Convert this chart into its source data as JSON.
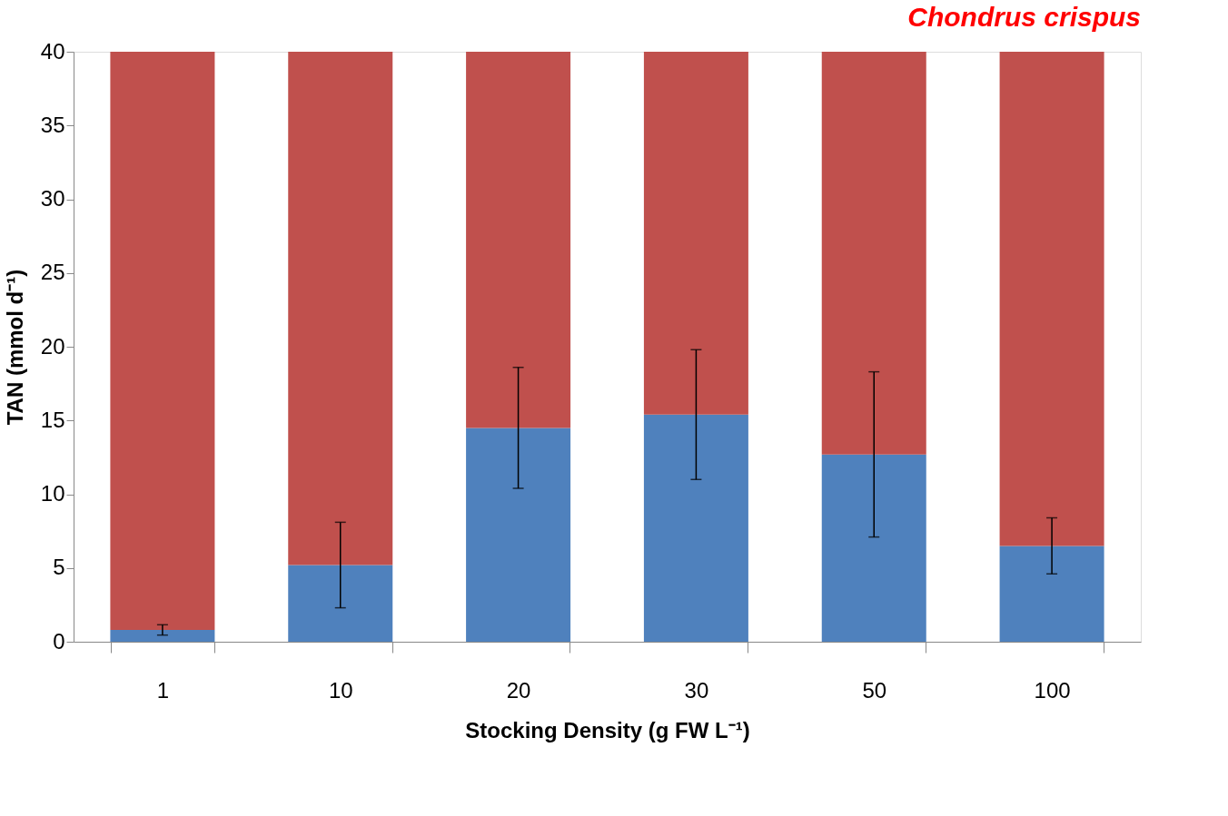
{
  "chart_data": {
    "type": "bar",
    "title": "Chondrus crispus",
    "xlabel": "Stocking Density (g FW L⁻¹)",
    "ylabel": "TAN (mmol d⁻¹)",
    "categories": [
      "1",
      "10",
      "20",
      "30",
      "50",
      "100"
    ],
    "stacked": true,
    "series": [
      {
        "color": "#4f81bd",
        "values": [
          0.8,
          5.2,
          14.5,
          15.4,
          12.7,
          6.5
        ],
        "errors": [
          0.35,
          2.9,
          4.1,
          4.4,
          5.6,
          1.9
        ]
      },
      {
        "color": "#c0504d",
        "values": [
          39.2,
          34.8,
          25.5,
          24.6,
          27.3,
          33.5
        ]
      }
    ],
    "ylim": [
      0,
      40
    ],
    "yticks": [
      0,
      5,
      10,
      15,
      20,
      25,
      30,
      35,
      40
    ],
    "grid": false
  }
}
